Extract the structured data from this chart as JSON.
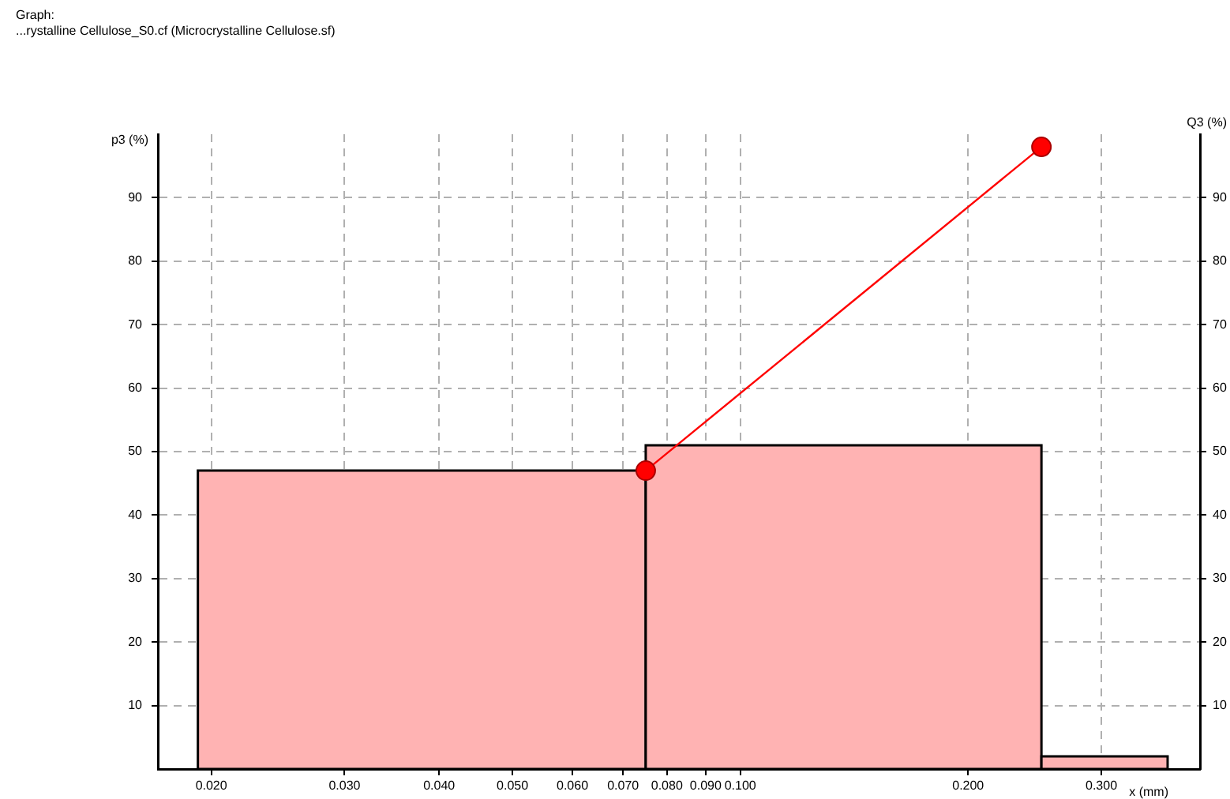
{
  "chart_data": {
    "type": "histogram",
    "title": "Graph:",
    "subtitle": "...rystalline Cellulose_S0.cf (Microcrystalline Cellulose.sf)",
    "xlabel": "x (mm)",
    "ylabel": "p3 (%)",
    "y2label": "Q3 (%)",
    "series": [
      {
        "color": "#ffb3b3",
        "bins": [
          0.0192,
          0.075,
          0.25,
          0.367
        ],
        "values": [
          47,
          51,
          2
        ]
      },
      {
        "type": "line",
        "axis": "y2",
        "color": "#ff0000",
        "marker": "circle",
        "x": [
          0.075,
          0.25
        ],
        "values": [
          47,
          98
        ]
      }
    ],
    "log": "x",
    "xlim": [
      0.017,
      0.405
    ],
    "xticks": [
      {
        "value": 0.02,
        "label": "0.020"
      },
      {
        "value": 0.03,
        "label": "0.030"
      },
      {
        "value": 0.04,
        "label": "0.040"
      },
      {
        "value": 0.05,
        "label": "0.050"
      },
      {
        "value": 0.06,
        "label": "0.060"
      },
      {
        "value": 0.07,
        "label": "0.070"
      },
      {
        "value": 0.08,
        "label": "0.080"
      },
      {
        "value": 0.09,
        "label": "0.090"
      },
      {
        "value": 0.1,
        "label": "0.100"
      },
      {
        "value": 0.2,
        "label": "0.200"
      },
      {
        "value": 0.3,
        "label": "0.300"
      }
    ],
    "ylim": [
      0,
      100
    ],
    "yticks": [
      10,
      20,
      30,
      40,
      50,
      60,
      70,
      80,
      90
    ],
    "y2lim": [
      0,
      100
    ],
    "y2ticks": [
      10,
      20,
      30,
      40,
      50,
      60,
      70,
      80,
      90
    ],
    "grid": true,
    "legend": false
  }
}
